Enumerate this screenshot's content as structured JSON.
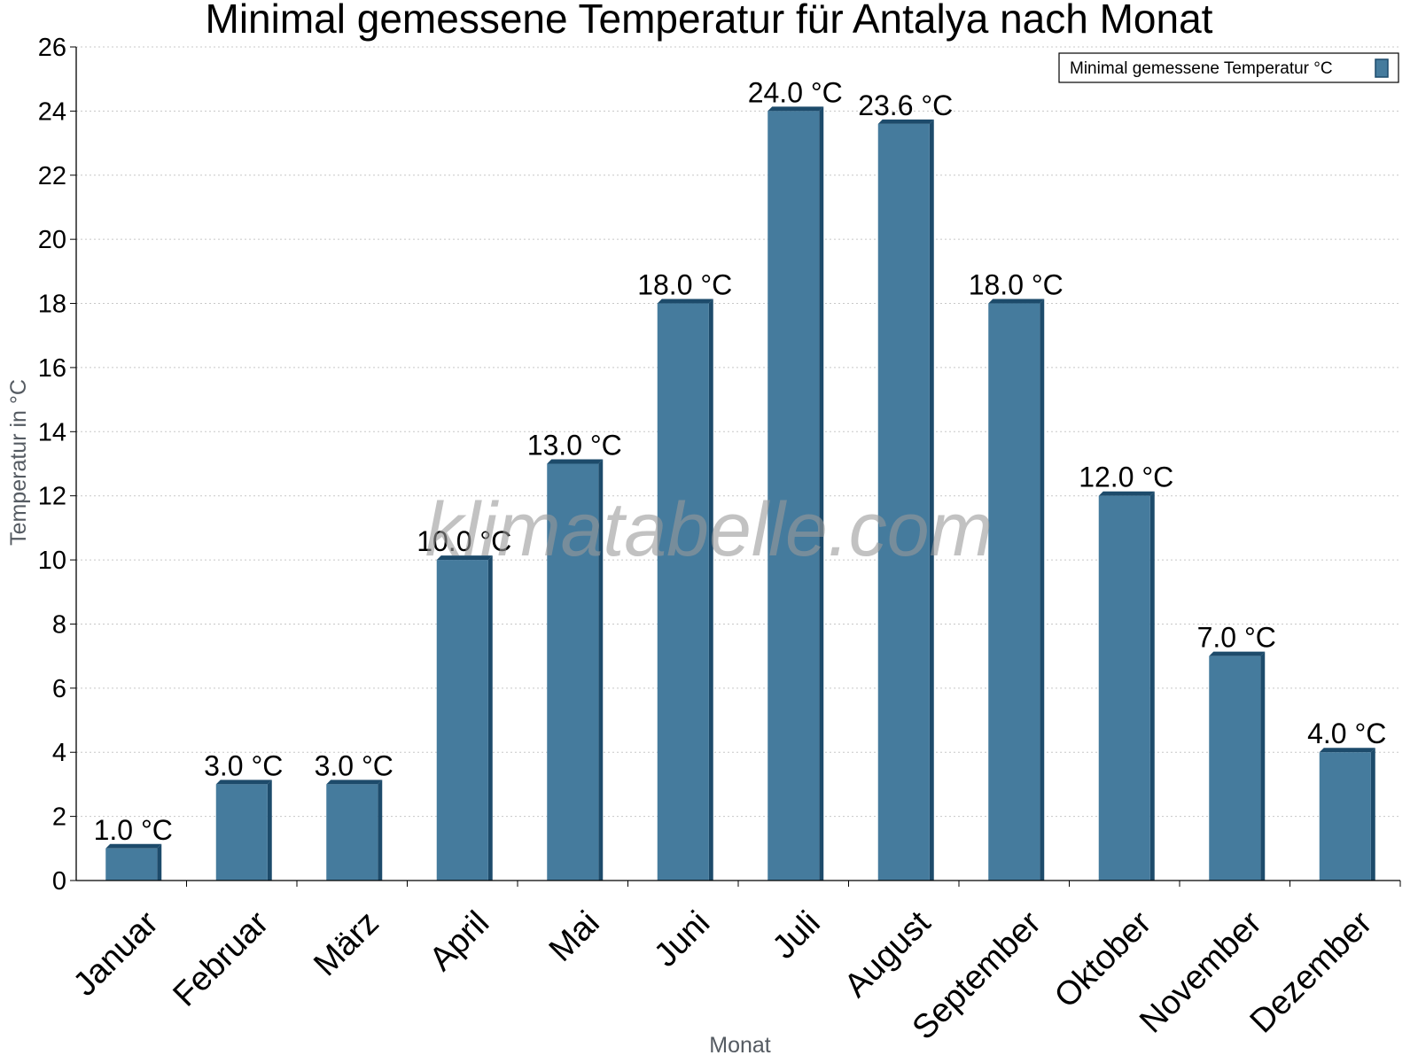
{
  "chart_data": {
    "type": "bar",
    "title": "Minimal gemessene Temperatur für Antalya nach Monat",
    "xlabel": "Monat",
    "ylabel": "Temperatur in °C",
    "categories": [
      "Januar",
      "Februar",
      "März",
      "April",
      "Mai",
      "Juni",
      "Juli",
      "August",
      "September",
      "Oktober",
      "November",
      "Dezember"
    ],
    "series": [
      {
        "name": "Minimal gemessene Temperatur °C",
        "values": [
          1.0,
          3.0,
          3.0,
          10.0,
          13.0,
          18.0,
          24.0,
          23.6,
          18.0,
          12.0,
          7.0,
          4.0
        ],
        "value_labels": [
          "1.0 °C",
          "3.0 °C",
          "3.0 °C",
          "10.0 °C",
          "13.0 °C",
          "18.0 °C",
          "24.0 °C",
          "23.6 °C",
          "18.0 °C",
          "12.0 °C",
          "7.0 °C",
          "4.0 °C"
        ],
        "color": "#457b9d",
        "shade_color": "#1d4b6b"
      }
    ],
    "ylim": [
      0,
      26
    ],
    "yticks": [
      0,
      2,
      4,
      6,
      8,
      10,
      12,
      14,
      16,
      18,
      20,
      22,
      24,
      26
    ],
    "ytick_labels": [
      "0",
      "2",
      "4",
      "6",
      "8",
      "10",
      "12",
      "14",
      "16",
      "18",
      "20",
      "22",
      "24",
      "26"
    ],
    "grid": true,
    "legend_position": "top-right",
    "watermark": "klimatabelle.com"
  }
}
